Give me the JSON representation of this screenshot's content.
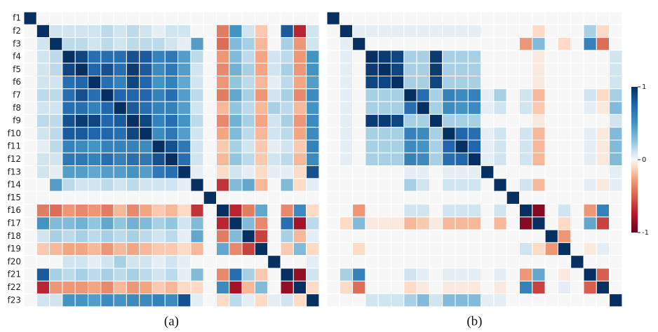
{
  "chart_data": [
    {
      "type": "heatmap",
      "caption": "(a)",
      "zlim": [
        -1,
        1
      ],
      "categories": [
        "f1",
        "f2",
        "f3",
        "f4",
        "f5",
        "f6",
        "f7",
        "f8",
        "f9",
        "f10",
        "f11",
        "f12",
        "f13",
        "f14",
        "f15",
        "f16",
        "f17",
        "f18",
        "f19",
        "f20",
        "f21",
        "f22",
        "f23"
      ],
      "values": [
        [
          1,
          0,
          0,
          0,
          0,
          0,
          0,
          0,
          0,
          0,
          0,
          0,
          0,
          0,
          0,
          0,
          0,
          0,
          0,
          0,
          0,
          0,
          0
        ],
        [
          0,
          1,
          0.1,
          0.1,
          0.1,
          0.1,
          0.15,
          0.1,
          0.15,
          0.1,
          0.05,
          0.1,
          0.1,
          0,
          0,
          -0.4,
          0.5,
          0.1,
          -0.15,
          0,
          0.8,
          -0.7,
          0.1
        ],
        [
          0,
          0.1,
          1,
          0.15,
          0.15,
          0.1,
          0.15,
          0.1,
          0.15,
          0.15,
          0.15,
          0.1,
          0.05,
          0.45,
          0,
          -0.45,
          0.3,
          0.2,
          -0.2,
          0,
          0.2,
          -0.3,
          0.1
        ],
        [
          0,
          0.1,
          0.15,
          1,
          0.9,
          0.7,
          0.7,
          0.7,
          0.85,
          0.8,
          0.6,
          0.65,
          0.45,
          0.15,
          0,
          -0.3,
          0.3,
          0.15,
          -0.25,
          0.1,
          0.15,
          -0.3,
          0.5
        ],
        [
          0,
          0.1,
          0.15,
          0.9,
          1,
          0.75,
          0.85,
          0.7,
          0.95,
          0.8,
          0.55,
          0.65,
          0.45,
          0.1,
          0,
          -0.35,
          0.35,
          0.2,
          -0.25,
          0.1,
          0.2,
          -0.3,
          0.5
        ],
        [
          0,
          0.1,
          0.1,
          0.7,
          0.75,
          1,
          0.7,
          0.6,
          0.9,
          0.75,
          0.5,
          0.6,
          0.4,
          0.1,
          0,
          -0.3,
          0.25,
          0.15,
          -0.2,
          0.05,
          0.15,
          -0.25,
          0.45
        ],
        [
          0,
          0.15,
          0.15,
          0.7,
          0.85,
          0.7,
          1,
          0.75,
          0.75,
          0.75,
          0.6,
          0.7,
          0.45,
          0.15,
          0,
          -0.4,
          0.4,
          0.2,
          -0.3,
          0.1,
          0.2,
          -0.35,
          0.55
        ],
        [
          0,
          0.1,
          0.1,
          0.7,
          0.7,
          0.6,
          0.75,
          1,
          0.8,
          0.7,
          0.6,
          0.6,
          0.45,
          0.1,
          0,
          -0.2,
          0.25,
          0.15,
          -0.2,
          0.2,
          0.15,
          -0.2,
          0.5
        ],
        [
          0,
          0.15,
          0.15,
          0.85,
          0.95,
          0.9,
          0.75,
          0.8,
          1,
          0.9,
          0.6,
          0.7,
          0.5,
          0.15,
          0,
          -0.35,
          0.35,
          0.2,
          -0.25,
          0.1,
          0.2,
          -0.3,
          0.55
        ],
        [
          0,
          0.1,
          0.15,
          0.8,
          0.8,
          0.75,
          0.75,
          0.7,
          0.9,
          1,
          0.55,
          0.65,
          0.45,
          0.1,
          0,
          -0.25,
          0.3,
          0.15,
          -0.2,
          0.1,
          0.15,
          -0.25,
          0.55
        ],
        [
          0,
          0.05,
          0.15,
          0.6,
          0.55,
          0.5,
          0.6,
          0.6,
          0.6,
          0.55,
          1,
          0.85,
          0.65,
          0.1,
          0,
          -0.15,
          0.2,
          0.1,
          -0.15,
          0.05,
          0.1,
          -0.15,
          0.6
        ],
        [
          0,
          0.1,
          0.1,
          0.65,
          0.65,
          0.6,
          0.7,
          0.6,
          0.7,
          0.65,
          0.85,
          1,
          0.7,
          0.1,
          0,
          -0.2,
          0.25,
          0.15,
          -0.15,
          0.1,
          0.15,
          -0.2,
          0.55
        ],
        [
          0,
          0.1,
          0.05,
          0.45,
          0.45,
          0.4,
          0.45,
          0.45,
          0.5,
          0.45,
          0.65,
          0.7,
          1,
          0.05,
          0,
          -0.1,
          0.1,
          0.05,
          -0.1,
          0.05,
          0.05,
          -0.1,
          0.85
        ],
        [
          0,
          0,
          0.45,
          0.15,
          0.1,
          0.1,
          0.15,
          0.1,
          0.15,
          0.1,
          0.1,
          0.1,
          0.05,
          1,
          0,
          -0.65,
          0.3,
          0.4,
          -0.2,
          0,
          0.3,
          -0.1,
          0.05
        ],
        [
          0,
          0,
          0,
          0,
          0,
          0,
          0,
          0,
          0,
          0,
          0,
          0,
          0,
          0,
          1,
          0,
          0,
          0,
          0,
          0,
          0,
          0,
          0
        ],
        [
          0,
          -0.4,
          -0.45,
          -0.3,
          -0.35,
          -0.3,
          -0.4,
          -0.2,
          -0.35,
          -0.25,
          -0.15,
          -0.2,
          -0.1,
          -0.65,
          0,
          1,
          -0.7,
          -0.4,
          0.4,
          0,
          -0.35,
          0.55,
          -0.1
        ],
        [
          0,
          0.5,
          0.3,
          0.3,
          0.35,
          0.25,
          0.4,
          0.25,
          0.35,
          0.3,
          0.2,
          0.25,
          0.1,
          0.3,
          0,
          -0.7,
          1,
          0.3,
          -0.35,
          0,
          0.7,
          -0.8,
          0.15
        ],
        [
          0,
          0.1,
          0.2,
          0.15,
          0.2,
          0.15,
          0.2,
          0.15,
          0.2,
          0.15,
          0.1,
          0.15,
          0.05,
          0.4,
          0,
          -0.4,
          0.3,
          1,
          -0.6,
          0,
          0.2,
          -0.2,
          0.05
        ],
        [
          0,
          -0.15,
          -0.2,
          -0.25,
          -0.25,
          -0.2,
          -0.3,
          -0.2,
          -0.25,
          -0.2,
          -0.15,
          -0.15,
          -0.1,
          -0.2,
          0,
          0.4,
          -0.35,
          -0.6,
          1,
          0,
          -0.15,
          0.3,
          -0.1
        ],
        [
          0,
          0,
          0,
          0.1,
          0.1,
          0.05,
          0.1,
          0.2,
          0.1,
          0.1,
          0.05,
          0.1,
          0.05,
          0,
          0,
          0,
          0,
          0,
          0,
          1,
          0,
          0,
          0.05
        ],
        [
          0,
          0.8,
          0.2,
          0.15,
          0.2,
          0.15,
          0.2,
          0.15,
          0.2,
          0.15,
          0.1,
          0.15,
          0.05,
          0.3,
          0,
          -0.35,
          0.7,
          0.2,
          -0.15,
          0,
          1,
          -0.85,
          0.1
        ],
        [
          0,
          -0.7,
          -0.3,
          -0.3,
          -0.3,
          -0.25,
          -0.35,
          -0.2,
          -0.3,
          -0.25,
          -0.15,
          -0.2,
          -0.1,
          -0.1,
          0,
          0.55,
          -0.8,
          -0.2,
          0.3,
          0,
          -0.85,
          1,
          -0.1
        ],
        [
          0,
          0.1,
          0.1,
          0.5,
          0.5,
          0.45,
          0.55,
          0.5,
          0.55,
          0.55,
          0.6,
          0.55,
          0.85,
          0.05,
          0,
          -0.1,
          0.15,
          0.05,
          -0.1,
          0.05,
          0.1,
          -0.1,
          1
        ]
      ]
    },
    {
      "type": "heatmap",
      "caption": "(b)",
      "zlim": [
        -1,
        1
      ],
      "zticks": [
        -1,
        0,
        1
      ],
      "values": [
        [
          1,
          0,
          0,
          0,
          0,
          0,
          0,
          0,
          0,
          0,
          0,
          0,
          0,
          0,
          0,
          0,
          0,
          0,
          0,
          0,
          0,
          0,
          0
        ],
        [
          0,
          1,
          0.05,
          0.05,
          0.05,
          0.05,
          0.05,
          0.05,
          0.05,
          0.05,
          0.05,
          0.05,
          0,
          0,
          0,
          0,
          -0.1,
          0,
          0,
          0,
          0.2,
          -0.1,
          0
        ],
        [
          0,
          0.05,
          1,
          0,
          0,
          0,
          0,
          0,
          0,
          0,
          0,
          0,
          0,
          0,
          0,
          -0.3,
          0.3,
          0,
          -0.1,
          0,
          0.6,
          -0.45,
          0
        ],
        [
          0,
          0.05,
          0,
          1,
          0.95,
          0.9,
          0.2,
          0.2,
          0.95,
          0.2,
          0.2,
          0.2,
          0,
          0,
          0,
          0,
          -0.05,
          0,
          0,
          0,
          0,
          0,
          0.1
        ],
        [
          0,
          0.05,
          0,
          0.95,
          1,
          0.9,
          0.2,
          0.2,
          0.95,
          0.2,
          0.2,
          0.2,
          0,
          0,
          0,
          0,
          -0.05,
          0,
          0,
          0,
          0,
          0,
          0.1
        ],
        [
          0,
          0.05,
          0,
          0.9,
          0.9,
          1,
          0.2,
          0.2,
          0.9,
          0.2,
          0.2,
          0.2,
          0,
          0,
          0,
          0,
          -0.05,
          0,
          0,
          0,
          0,
          0,
          0.1
        ],
        [
          0,
          0.05,
          0,
          0.2,
          0.2,
          0.2,
          1,
          0.7,
          0.2,
          0.6,
          0.55,
          0.6,
          0.05,
          0.2,
          0,
          0.1,
          -0.2,
          0,
          0,
          0,
          0.1,
          -0.1,
          0.2
        ],
        [
          0,
          0.05,
          0,
          0.2,
          0.2,
          0.2,
          0.7,
          1,
          0.2,
          0.55,
          0.5,
          0.55,
          0.05,
          0.1,
          0,
          0.1,
          -0.15,
          0,
          0,
          0,
          0.05,
          -0.05,
          0.3
        ],
        [
          0,
          0.05,
          0,
          0.95,
          0.95,
          0.9,
          0.2,
          0.2,
          1,
          0.2,
          0.2,
          0.2,
          0,
          0,
          0,
          0,
          -0.05,
          0,
          0,
          0,
          0,
          0,
          0.1
        ],
        [
          0,
          0.05,
          0,
          0.2,
          0.2,
          0.2,
          0.6,
          0.55,
          0.2,
          1,
          0.75,
          0.7,
          0.05,
          0.1,
          0,
          0.1,
          -0.2,
          0,
          0,
          0,
          0.05,
          -0.05,
          0.3
        ],
        [
          0,
          0.05,
          0,
          0.2,
          0.2,
          0.2,
          0.55,
          0.5,
          0.2,
          0.75,
          1,
          0.75,
          0.05,
          0.1,
          0,
          0.1,
          -0.2,
          0,
          0,
          0,
          0.05,
          -0.05,
          0.3
        ],
        [
          0,
          0.05,
          0,
          0.2,
          0.2,
          0.2,
          0.6,
          0.55,
          0.2,
          0.7,
          0.75,
          1,
          0.05,
          0.1,
          0,
          0.1,
          -0.2,
          0,
          0,
          0,
          0.05,
          -0.05,
          0.3
        ],
        [
          0,
          0,
          0,
          0,
          0,
          0,
          0.05,
          0.05,
          0,
          0.05,
          0.05,
          0.05,
          1,
          0,
          0,
          0,
          0,
          0,
          0,
          0,
          0,
          0,
          0.05
        ],
        [
          0,
          0,
          0,
          0,
          0,
          0,
          0.2,
          0.1,
          0,
          0.1,
          0.1,
          0.1,
          0,
          1,
          0,
          0.1,
          -0.2,
          0,
          0,
          0,
          0.05,
          -0.05,
          0.05
        ],
        [
          0,
          0,
          0,
          0,
          0,
          0,
          0,
          0,
          0,
          0,
          0,
          0,
          0,
          0,
          1,
          0,
          0,
          0,
          0,
          0,
          0,
          0,
          0
        ],
        [
          0,
          0,
          -0.3,
          0,
          0,
          0,
          0.1,
          0.1,
          0,
          0.1,
          0.1,
          0.1,
          0,
          0.1,
          0,
          1,
          -0.9,
          0,
          0.1,
          0,
          -0.3,
          0.6,
          0
        ],
        [
          0,
          -0.1,
          0.3,
          -0.05,
          -0.05,
          -0.05,
          -0.2,
          -0.15,
          -0.05,
          -0.2,
          -0.2,
          -0.2,
          0,
          -0.2,
          0,
          -0.9,
          1,
          0,
          -0.1,
          0,
          0.4,
          -0.6,
          0
        ],
        [
          0,
          0,
          0,
          0,
          0,
          0,
          0,
          0,
          0,
          0,
          0,
          0,
          0,
          0,
          0,
          0,
          0,
          1,
          -0.3,
          0,
          0,
          0,
          0
        ],
        [
          0,
          0,
          -0.1,
          0,
          0,
          0,
          0,
          0,
          0,
          0,
          0,
          0,
          0,
          0,
          0,
          0.1,
          -0.1,
          -0.3,
          1,
          0,
          -0.05,
          0.05,
          0
        ],
        [
          0,
          0,
          0,
          0,
          0,
          0,
          0,
          0,
          0,
          0,
          0,
          0,
          0,
          0,
          0,
          0,
          0,
          0,
          0,
          1,
          0,
          0,
          0
        ],
        [
          0,
          0.2,
          0.6,
          0,
          0,
          0,
          0.1,
          0.05,
          0,
          0.05,
          0.05,
          0.05,
          0,
          0.05,
          0,
          -0.3,
          0.4,
          0,
          -0.05,
          0,
          1,
          -0.5,
          0
        ],
        [
          0,
          -0.1,
          -0.45,
          0,
          0,
          0,
          -0.1,
          -0.05,
          0,
          -0.05,
          -0.05,
          -0.05,
          0,
          -0.05,
          0,
          0.6,
          -0.6,
          0,
          0.05,
          0,
          -0.5,
          1,
          0
        ],
        [
          0,
          0,
          0,
          0.1,
          0.1,
          0.1,
          0.2,
          0.3,
          0.1,
          0.3,
          0.3,
          0.3,
          0.05,
          0.05,
          0,
          0,
          0,
          0,
          0,
          0,
          0,
          0,
          1
        ]
      ]
    }
  ]
}
